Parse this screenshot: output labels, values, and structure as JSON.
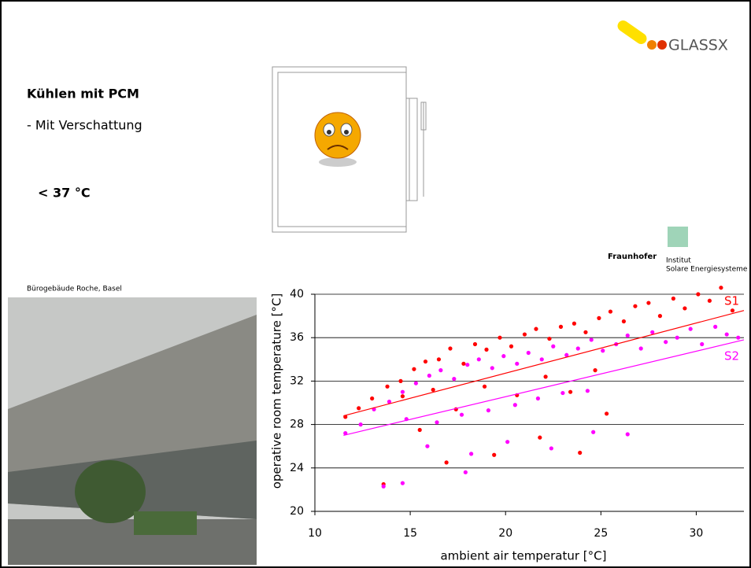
{
  "slide": {
    "logo": "GLASSX",
    "title": "Kühlen mit PCM",
    "bullet": "- Mit Verschattung",
    "temperature": "< 37 °C",
    "photo_caption": "Bürogebäude Roche, Basel",
    "fraunhofer": "Fraunhofer",
    "institute_1": "Institut",
    "institute_2": "Solare Energiesysteme"
  },
  "chart_data": {
    "type": "scatter",
    "x_label": "ambient air temperatur [°C]",
    "y_label": "operative room temperature [°C]",
    "xlim": [
      10,
      32.5
    ],
    "ylim": [
      20,
      40
    ],
    "xticks": [
      10,
      15,
      20,
      25,
      30
    ],
    "yticks": [
      20,
      24,
      28,
      32,
      36,
      40
    ],
    "grid": true,
    "series": [
      {
        "name": "S1",
        "color": "#ff0000",
        "x": [
          11.6,
          12.3,
          13.0,
          13.8,
          14.5,
          15.2,
          15.8,
          16.5,
          17.1,
          17.8,
          18.4,
          19.0,
          19.7,
          20.3,
          21.0,
          21.6,
          22.3,
          22.9,
          23.6,
          24.2,
          24.9,
          25.5,
          26.2,
          26.8,
          27.5,
          28.1,
          28.8,
          29.4,
          30.1,
          30.7,
          31.3,
          31.9,
          14.6,
          16.2,
          17.4,
          18.9,
          20.6,
          22.1,
          23.4,
          24.7,
          16.9,
          19.4,
          21.8,
          23.9,
          25.3,
          13.6,
          15.5
        ],
        "values": [
          28.7,
          29.5,
          30.4,
          31.5,
          32.0,
          33.1,
          33.8,
          34.0,
          35.0,
          33.6,
          35.4,
          34.9,
          36.0,
          35.2,
          36.3,
          36.8,
          35.9,
          37.0,
          37.3,
          36.5,
          37.8,
          38.4,
          37.5,
          38.9,
          39.2,
          38.0,
          39.6,
          38.7,
          40.0,
          39.4,
          40.6,
          38.5,
          30.6,
          31.2,
          29.4,
          31.5,
          30.7,
          32.4,
          31.0,
          33.0,
          24.5,
          25.2,
          26.8,
          25.4,
          29.0,
          22.5,
          27.5
        ]
      },
      {
        "name": "S2",
        "color": "#ff00ff",
        "x": [
          11.6,
          12.4,
          13.1,
          13.9,
          14.6,
          15.3,
          16.0,
          16.6,
          17.3,
          18.0,
          18.6,
          19.3,
          19.9,
          20.6,
          21.2,
          21.9,
          22.5,
          23.2,
          23.8,
          24.5,
          25.1,
          25.8,
          26.4,
          27.1,
          27.7,
          28.4,
          29.0,
          29.7,
          30.3,
          31.0,
          31.6,
          32.2,
          14.8,
          16.4,
          17.7,
          19.1,
          20.5,
          21.7,
          23.0,
          24.3,
          15.9,
          18.2,
          20.1,
          22.4,
          24.6,
          26.4,
          13.6,
          14.6,
          17.9
        ],
        "values": [
          27.2,
          28.0,
          29.4,
          30.1,
          31.0,
          31.8,
          32.5,
          33.0,
          32.2,
          33.5,
          34.0,
          33.2,
          34.3,
          33.6,
          34.6,
          34.0,
          35.2,
          34.4,
          35.0,
          35.8,
          34.8,
          35.4,
          36.2,
          35.0,
          36.5,
          35.6,
          36.0,
          36.8,
          35.4,
          37.0,
          36.3,
          36.0,
          28.5,
          28.2,
          28.9,
          29.3,
          29.8,
          30.4,
          30.9,
          31.1,
          26.0,
          25.3,
          26.4,
          25.8,
          27.3,
          27.1,
          22.3,
          22.6,
          23.6
        ]
      }
    ],
    "trendlines": [
      {
        "color": "#ff0000",
        "x": [
          11.5,
          32.5
        ],
        "values": [
          28.8,
          38.5
        ]
      },
      {
        "color": "#ff00ff",
        "x": [
          11.5,
          32.5
        ],
        "values": [
          27.0,
          35.8
        ]
      }
    ]
  }
}
